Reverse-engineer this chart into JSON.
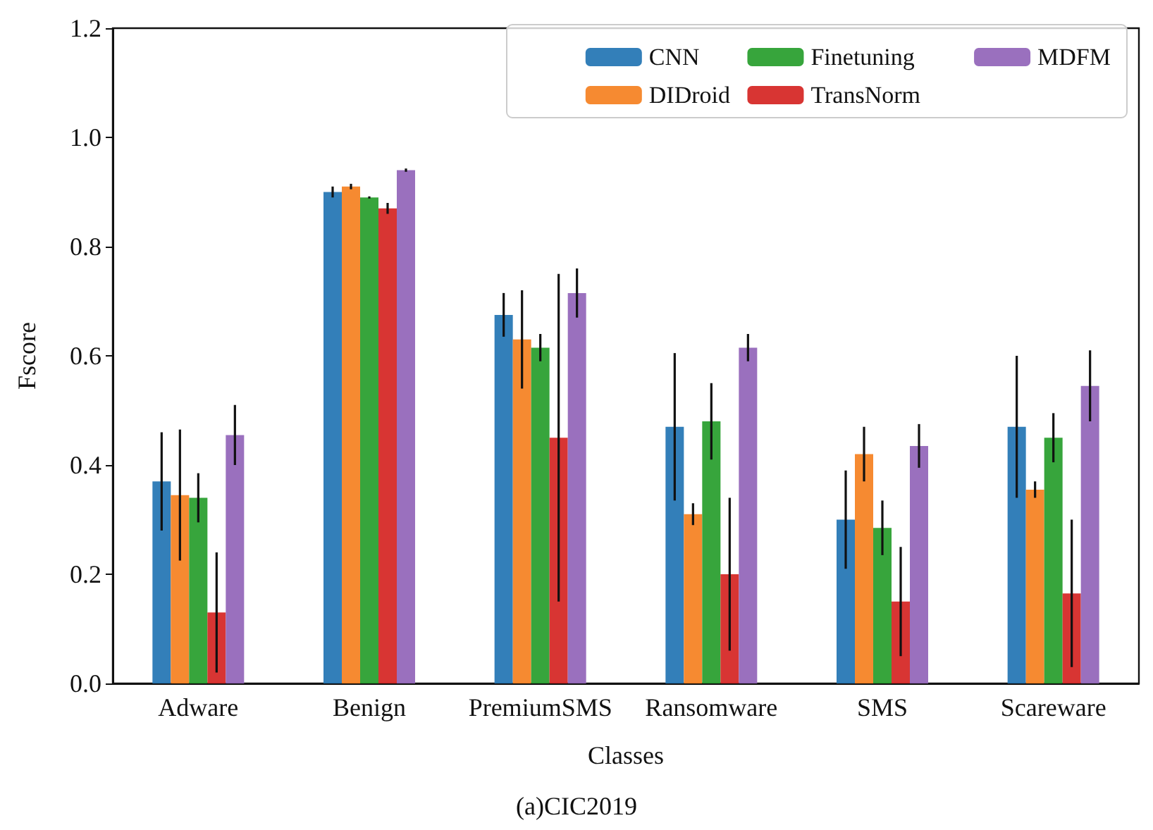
{
  "chart_data": {
    "type": "bar",
    "xlabel": "Classes",
    "ylabel": "Fscore",
    "annotations": [
      "(a)CIC2019"
    ],
    "categories": [
      "Adware",
      "Benign",
      "PremiumSMS",
      "Ransomware",
      "SMS",
      "Scareware"
    ],
    "series": [
      {
        "name": "CNN",
        "color": "#2878b5",
        "values": [
          0.37,
          0.9,
          0.675,
          0.47,
          0.3,
          0.47
        ],
        "errors": [
          0.09,
          0.01,
          0.04,
          0.135,
          0.09,
          0.13
        ]
      },
      {
        "name": "DIDroid",
        "color": "#f58426",
        "values": [
          0.345,
          0.91,
          0.63,
          0.31,
          0.42,
          0.355
        ],
        "errors": [
          0.12,
          0.005,
          0.09,
          0.02,
          0.05,
          0.015
        ]
      },
      {
        "name": "Finetuning",
        "color": "#2ca032",
        "values": [
          0.34,
          0.89,
          0.615,
          0.48,
          0.285,
          0.45
        ],
        "errors": [
          0.045,
          0.002,
          0.025,
          0.07,
          0.05,
          0.045
        ]
      },
      {
        "name": "TransNorm",
        "color": "#d62a28",
        "values": [
          0.13,
          0.87,
          0.45,
          0.2,
          0.15,
          0.165
        ],
        "errors": [
          0.11,
          0.01,
          0.3,
          0.14,
          0.1,
          0.135
        ]
      },
      {
        "name": "MDFM",
        "color": "#9568ba",
        "values": [
          0.455,
          0.94,
          0.715,
          0.615,
          0.435,
          0.545
        ],
        "errors": [
          0.055,
          0.003,
          0.045,
          0.025,
          0.04,
          0.065
        ]
      }
    ],
    "ylim": [
      0,
      1.2
    ],
    "yticks": [
      {
        "value": 0,
        "label": "0.0"
      },
      0.2,
      0.4,
      0.6,
      0.8,
      {
        "value": 1,
        "label": "1.0"
      },
      1.2
    ],
    "legend": "top right",
    "grid": false
  }
}
